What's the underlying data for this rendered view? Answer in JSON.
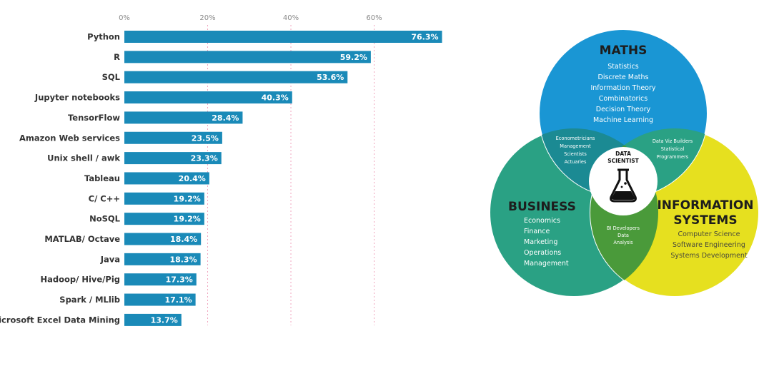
{
  "chart_data": {
    "type": "bar",
    "orientation": "horizontal",
    "categories": [
      "Python",
      "R",
      "SQL",
      "Jupyter notebooks",
      "TensorFlow",
      "Amazon Web services",
      "Unix shell / awk",
      "Tableau",
      "C/ C++",
      "NoSQL",
      "MATLAB/ Octave",
      "Java",
      "Hadoop/ Hive/Pig",
      "Spark / MLlib",
      "Microsoft Excel Data Mining"
    ],
    "values": [
      76.3,
      59.2,
      53.6,
      40.3,
      28.4,
      23.5,
      23.3,
      20.4,
      19.2,
      19.2,
      18.4,
      18.3,
      17.3,
      17.1,
      13.7
    ],
    "value_labels": [
      "76.3%",
      "59.2%",
      "53.6%",
      "40.3%",
      "28.4%",
      "23.5%",
      "23.3%",
      "20.4%",
      "19.2%",
      "19.2%",
      "18.4%",
      "18.3%",
      "17.3%",
      "17.1%",
      "13.7%"
    ],
    "ticks": [
      "0%",
      "20%",
      "40%",
      "60%"
    ],
    "tick_values": [
      0,
      20,
      40,
      60
    ],
    "xlim": [
      0,
      76.3
    ],
    "grid": true,
    "bar_color": "#1a8ab8"
  },
  "venn": {
    "maths": {
      "title": "MATHS",
      "items": [
        "Statistics",
        "Discrete Maths",
        "Information Theory",
        "Combinatorics",
        "Decision Theory",
        "Machine Learning"
      ],
      "color": "#1a96d4"
    },
    "business": {
      "title": "BUSINESS",
      "items": [
        "Economics",
        "Finance",
        "Marketing",
        "Operations",
        "Management"
      ],
      "color": "#2aa184"
    },
    "information_systems": {
      "title_line1": "INFORMATION",
      "title_line2": "SYSTEMS",
      "items": [
        "Computer Science",
        "Software Engineering",
        "Systems Development"
      ],
      "color": "#e6e01f"
    },
    "overlap_maths_business": [
      "Econometricians",
      "Management",
      "Scientists",
      "Actuaries"
    ],
    "overlap_maths_is": [
      "Data Viz Builders",
      "Statistical",
      "Programmers"
    ],
    "overlap_business_is": [
      "BI Developers",
      "Data",
      "Analysis"
    ],
    "center": {
      "line1": "DATA",
      "line2": "SCIENTIST"
    }
  }
}
